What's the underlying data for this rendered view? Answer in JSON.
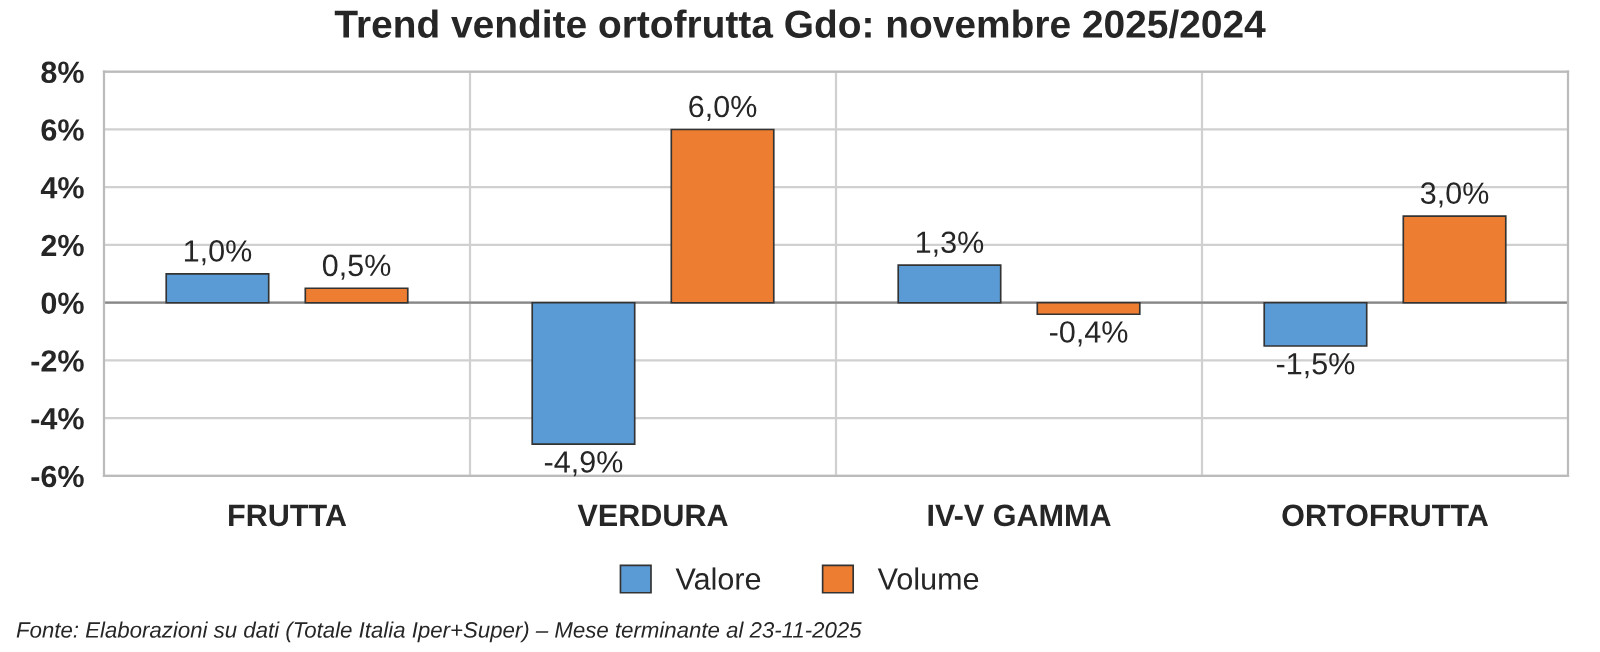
{
  "chart_data": {
    "type": "bar",
    "title": "Trend vendite ortofrutta Gdo: novembre 2025/2024",
    "categories": [
      "FRUTTA",
      "VERDURA",
      "IV-V GAMMA",
      "ORTOFRUTTA"
    ],
    "series": [
      {
        "name": "Valore",
        "color": "#5b9bd5",
        "values": [
          1.0,
          -4.9,
          1.3,
          -1.5
        ],
        "value_labels": [
          "1,0%",
          "-4,9%",
          "1,3%",
          "-1,5%"
        ]
      },
      {
        "name": "Volume",
        "color": "#ed7d31",
        "values": [
          0.5,
          6.0,
          -0.4,
          3.0
        ],
        "value_labels": [
          "0,5%",
          "6,0%",
          "-0,4%",
          "3,0%"
        ]
      }
    ],
    "ylim": [
      -6,
      8
    ],
    "yticks": [
      {
        "value": -6,
        "label": "-6%"
      },
      {
        "value": -4,
        "label": "-4%"
      },
      {
        "value": -2,
        "label": "-2%"
      },
      {
        "value": 0,
        "label": "0%"
      },
      {
        "value": 2,
        "label": "2%"
      },
      {
        "value": 4,
        "label": "4%"
      },
      {
        "value": 6,
        "label": "6%"
      },
      {
        "value": 8,
        "label": "8%"
      }
    ],
    "grid": "y",
    "legend": "bottom",
    "annotations": [
      "Fonte: Elaborazioni su dati (Totale Italia Iper+Super) – Mese terminante al 23-11-2025"
    ]
  }
}
